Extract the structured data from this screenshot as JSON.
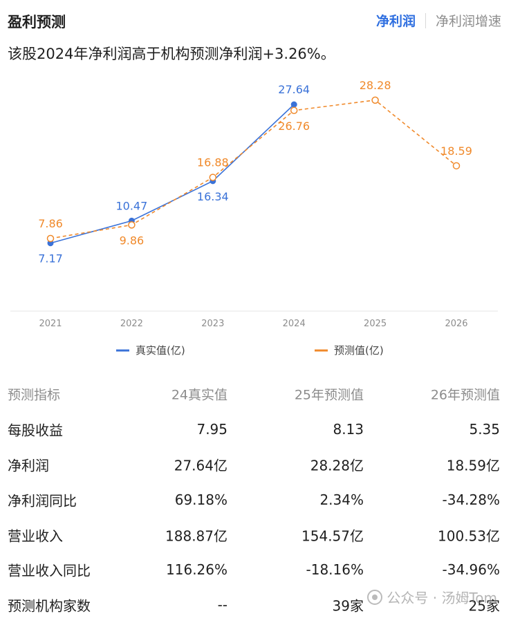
{
  "header": {
    "title": "盈利预测",
    "tabs": [
      {
        "label": "净利润",
        "active": true
      },
      {
        "label": "净利润增速",
        "active": false
      }
    ]
  },
  "summary": "该股2024年净利润高于机构预测净利润+3.26%。",
  "colors": {
    "actual": "#3a72d8",
    "forecast": "#f0892a",
    "tab_active": "#2f6fe0"
  },
  "chart_data": {
    "type": "line",
    "categories": [
      "2021",
      "2022",
      "2023",
      "2024",
      "2025",
      "2026"
    ],
    "series": [
      {
        "name": "真实值(亿)",
        "style": "solid",
        "values": [
          7.17,
          10.47,
          16.34,
          27.64,
          null,
          null
        ]
      },
      {
        "name": "预测值(亿)",
        "style": "dashed",
        "values": [
          7.86,
          9.86,
          16.88,
          26.76,
          28.28,
          18.59
        ]
      }
    ],
    "labels": {
      "actual": [
        "7.17",
        "10.47",
        "16.34",
        "27.64",
        "",
        ""
      ],
      "forecast": [
        "7.86",
        "9.86",
        "16.88",
        "26.76",
        "28.28",
        "18.59"
      ]
    },
    "ylim": [
      0,
      30
    ],
    "grid": false,
    "legend": "bottom"
  },
  "table": {
    "headers": [
      "预测指标",
      "24真实值",
      "25年预测值",
      "26年预测值"
    ],
    "rows": [
      [
        "每股收益",
        "7.95",
        "8.13",
        "5.35"
      ],
      [
        "净利润",
        "27.64亿",
        "28.28亿",
        "18.59亿"
      ],
      [
        "净利润同比",
        "69.18%",
        "2.34%",
        "-34.28%"
      ],
      [
        "营业收入",
        "188.87亿",
        "154.57亿",
        "100.53亿"
      ],
      [
        "营业收入同比",
        "116.26%",
        "-18.16%",
        "-34.96%"
      ],
      [
        "预测机构家数",
        "--",
        "39家",
        "25家"
      ]
    ]
  },
  "watermark": "公众号 · 汤姆Tom"
}
